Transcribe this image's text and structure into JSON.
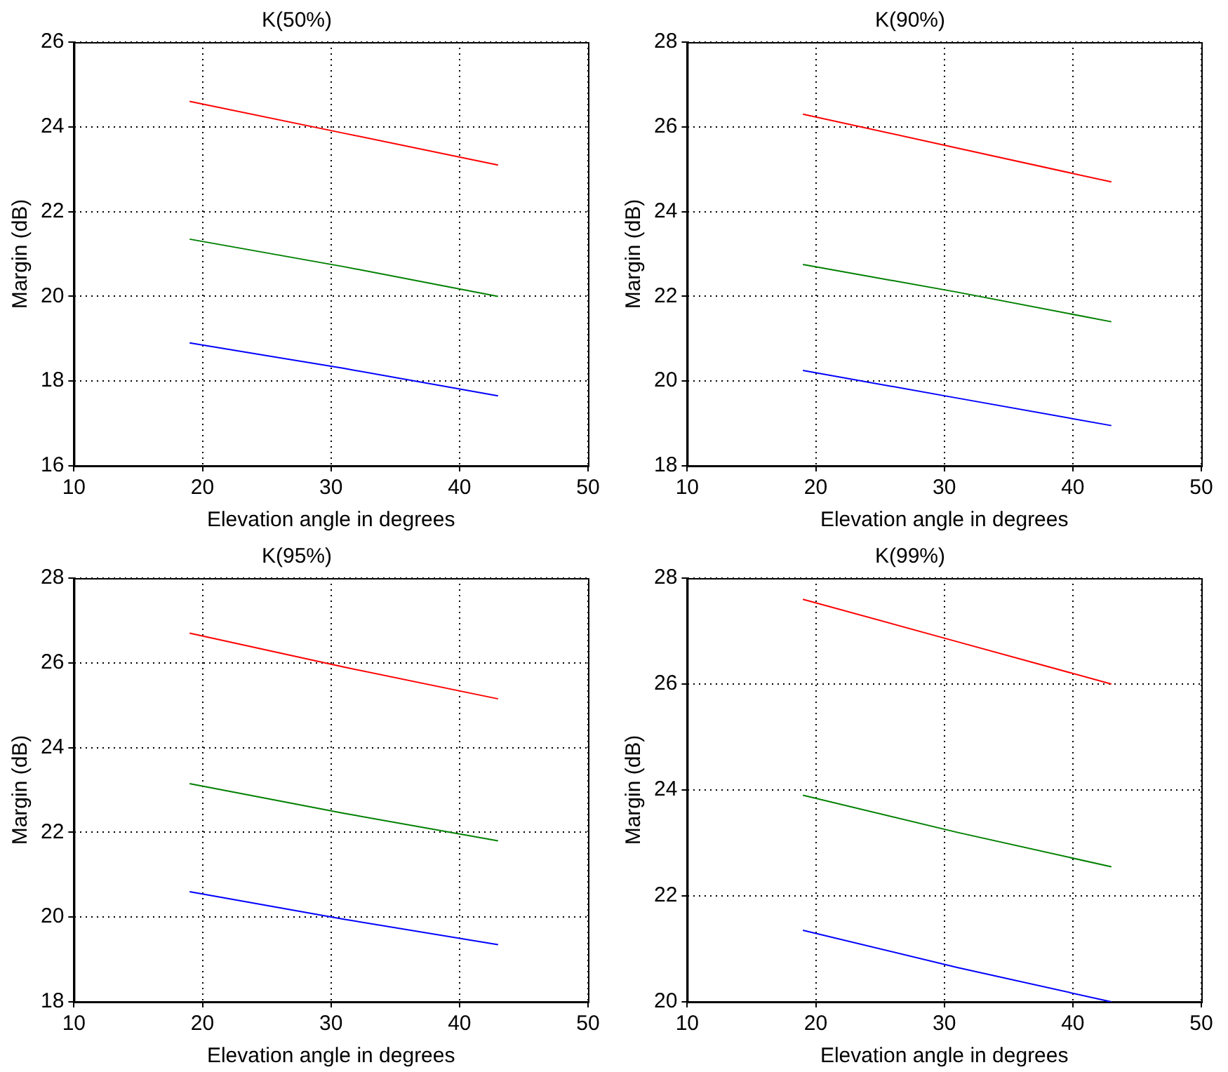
{
  "chart_data": [
    {
      "type": "line",
      "title": "K(50%)",
      "xlabel": "Elevation angle in degrees",
      "ylabel": "Margin (dB)",
      "x": [
        19,
        31,
        43
      ],
      "xlim": [
        10,
        50
      ],
      "xticks": [
        10,
        20,
        30,
        40,
        50
      ],
      "ylim": [
        16,
        26
      ],
      "yticks": [
        16,
        18,
        20,
        22,
        24,
        26
      ],
      "grid": true,
      "marker": "none",
      "line_style": "solid",
      "series": [
        {
          "color": "#ff0000",
          "values": [
            24.6,
            23.85,
            23.1
          ]
        },
        {
          "color": "#008000",
          "values": [
            21.35,
            20.7,
            20.0
          ]
        },
        {
          "color": "#0000ff",
          "values": [
            18.9,
            18.3,
            17.65
          ]
        }
      ]
    },
    {
      "type": "line",
      "title": "K(90%)",
      "xlabel": "Elevation angle in degrees",
      "ylabel": "Margin (dB)",
      "x": [
        19,
        31,
        43
      ],
      "xlim": [
        10,
        50
      ],
      "xticks": [
        10,
        20,
        30,
        40,
        50
      ],
      "ylim": [
        18,
        28
      ],
      "yticks": [
        18,
        20,
        22,
        24,
        26,
        28
      ],
      "grid": true,
      "marker": "none",
      "line_style": "solid",
      "series": [
        {
          "color": "#ff0000",
          "values": [
            26.3,
            25.5,
            24.7
          ]
        },
        {
          "color": "#008000",
          "values": [
            22.75,
            22.1,
            21.4
          ]
        },
        {
          "color": "#0000ff",
          "values": [
            20.25,
            19.6,
            18.95
          ]
        }
      ]
    },
    {
      "type": "line",
      "title": "K(95%)",
      "xlabel": "Elevation angle in degrees",
      "ylabel": "Margin (dB)",
      "x": [
        19,
        31,
        43
      ],
      "xlim": [
        10,
        50
      ],
      "xticks": [
        10,
        20,
        30,
        40,
        50
      ],
      "ylim": [
        18,
        28
      ],
      "yticks": [
        18,
        20,
        22,
        24,
        26,
        28
      ],
      "grid": true,
      "marker": "none",
      "line_style": "solid",
      "series": [
        {
          "color": "#ff0000",
          "values": [
            26.7,
            25.9,
            25.15
          ]
        },
        {
          "color": "#008000",
          "values": [
            23.15,
            22.45,
            21.8
          ]
        },
        {
          "color": "#0000ff",
          "values": [
            20.6,
            19.95,
            19.35
          ]
        }
      ]
    },
    {
      "type": "line",
      "title": "K(99%)",
      "xlabel": "Elevation angle in degrees",
      "ylabel": "Margin (dB)",
      "x": [
        19,
        31,
        43
      ],
      "xlim": [
        10,
        50
      ],
      "xticks": [
        10,
        20,
        30,
        40,
        50
      ],
      "ylim": [
        20,
        28
      ],
      "yticks": [
        20,
        22,
        24,
        26,
        28
      ],
      "grid": true,
      "marker": "none",
      "line_style": "solid",
      "series": [
        {
          "color": "#ff0000",
          "values": [
            27.6,
            26.8,
            26.0
          ]
        },
        {
          "color": "#008000",
          "values": [
            23.9,
            23.2,
            22.55
          ]
        },
        {
          "color": "#0000ff",
          "values": [
            21.35,
            20.65,
            20.0
          ]
        }
      ]
    }
  ]
}
